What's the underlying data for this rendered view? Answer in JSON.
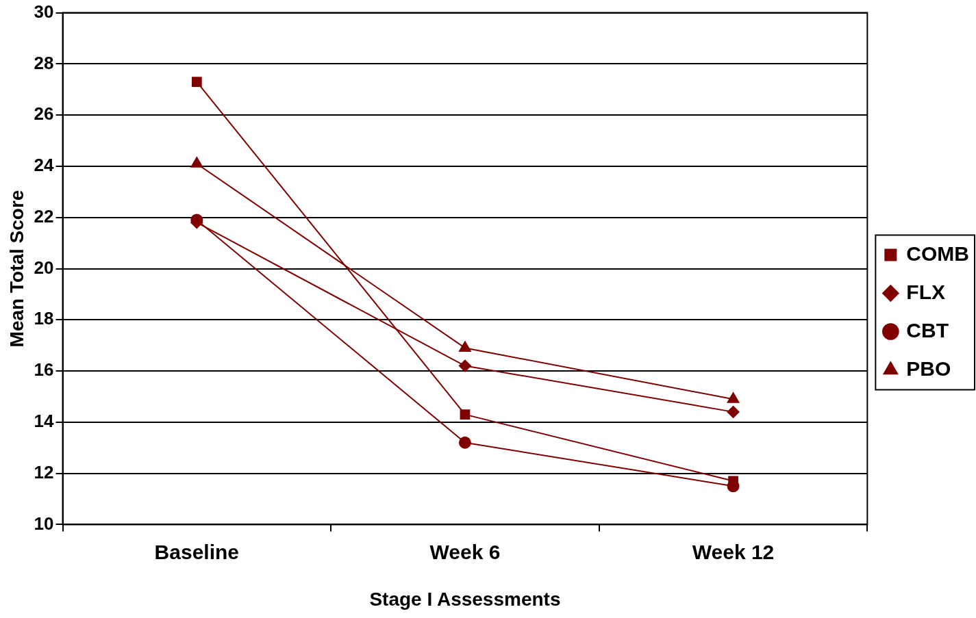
{
  "chart_data": {
    "type": "line",
    "xlabel": "Stage I Assessments",
    "ylabel": "Mean Total Score",
    "categories": [
      "Baseline",
      "Week 6",
      "Week 12"
    ],
    "series": [
      {
        "name": "COMB",
        "color": "#800000",
        "marker": "square",
        "values": [
          27.3,
          14.3,
          11.7
        ]
      },
      {
        "name": "FLX",
        "color": "#800000",
        "marker": "diamond",
        "values": [
          21.8,
          16.2,
          14.4
        ]
      },
      {
        "name": "CBT",
        "color": "#800000",
        "marker": "circle",
        "values": [
          21.9,
          13.2,
          11.5
        ]
      },
      {
        "name": "PBO",
        "color": "#800000",
        "marker": "triangle",
        "values": [
          24.1,
          16.9,
          14.9
        ]
      }
    ],
    "ylim": [
      10,
      30
    ],
    "yticks": [
      10,
      12,
      14,
      16,
      18,
      20,
      22,
      24,
      26,
      28,
      30
    ],
    "grid": "y",
    "legend": "right",
    "line_style": "solid"
  }
}
